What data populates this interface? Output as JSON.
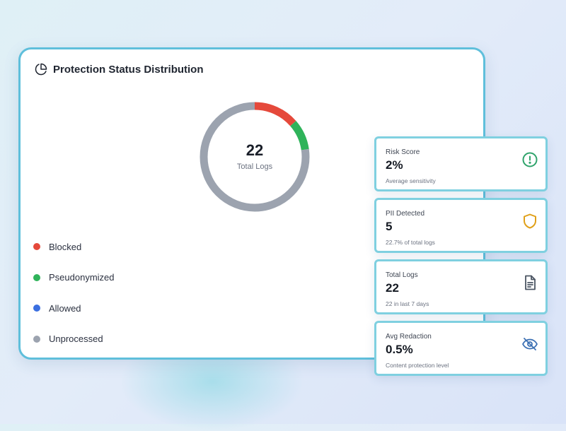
{
  "main_card": {
    "title": "Protection Status Distribution",
    "icon": "pie-chart-icon",
    "donut": {
      "value": "22",
      "label": "Total Logs",
      "segments": [
        {
          "name": "Blocked",
          "color": "#e5493b",
          "fraction": 0.136
        },
        {
          "name": "Pseudonymized",
          "color": "#2fb35a",
          "fraction": 0.091
        },
        {
          "name": "Unprocessed",
          "color": "#9ca3af",
          "fraction": 0.773
        }
      ]
    },
    "legend": [
      {
        "label": "Blocked",
        "color": "#e5493b"
      },
      {
        "label": "Pseudonymized",
        "color": "#2fb35a"
      },
      {
        "label": "Allowed",
        "color": "#3b6fe0"
      },
      {
        "label": "Unprocessed",
        "color": "#9ca3af"
      }
    ]
  },
  "stats": [
    {
      "label": "Risk Score",
      "value": "2%",
      "sub": "Average sensitivity",
      "icon": "alert-circle-icon",
      "icon_color": "#2fa36b"
    },
    {
      "label": "PII Detected",
      "value": "5",
      "sub": "22.7% of total logs",
      "icon": "shield-icon",
      "icon_color": "#e0a019"
    },
    {
      "label": "Total Logs",
      "value": "22",
      "sub": "22 in last 7 days",
      "icon": "document-icon",
      "icon_color": "#4b5563"
    },
    {
      "label": "Avg Redaction",
      "value": "0.5%",
      "sub": "Content protection level",
      "icon": "eye-off-icon",
      "icon_color": "#3b6fb3"
    }
  ]
}
